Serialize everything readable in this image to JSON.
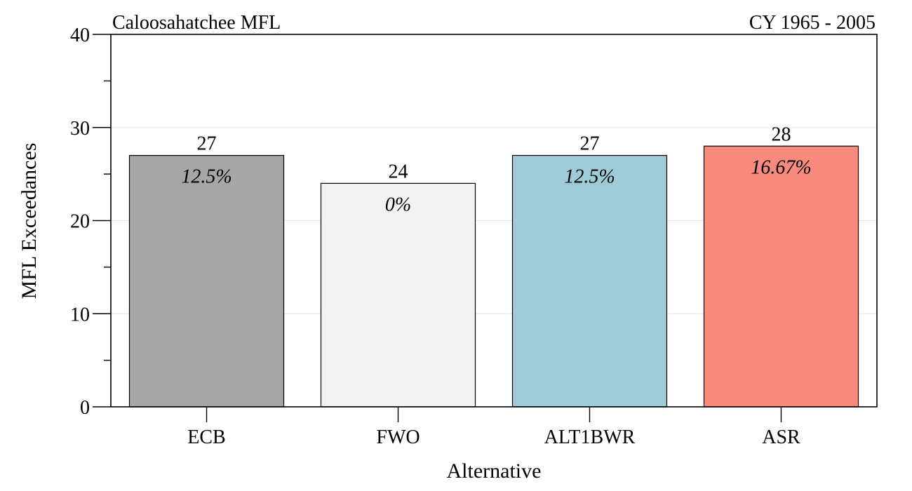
{
  "chart_data": {
    "type": "bar",
    "title": "Caloosahatchee MFL",
    "subtitle": "CY 1965 - 2005",
    "xlabel": "Alternative",
    "ylabel": "MFL Exceedances",
    "ylim": [
      0,
      40
    ],
    "yticks": [
      "0",
      "10",
      "20",
      "30",
      "40"
    ],
    "y_minor_step": 5,
    "grid": true,
    "categories": [
      "ECB",
      "FWO",
      "ALT1BWR",
      "ASR"
    ],
    "values": [
      27,
      24,
      27,
      28
    ],
    "percent_labels": [
      "12.5%",
      "0%",
      "12.5%",
      "16.67%"
    ],
    "colors": [
      "#a6a6a6",
      "#f2f2f2",
      "#9ecbd7",
      "#f88b7e"
    ]
  }
}
